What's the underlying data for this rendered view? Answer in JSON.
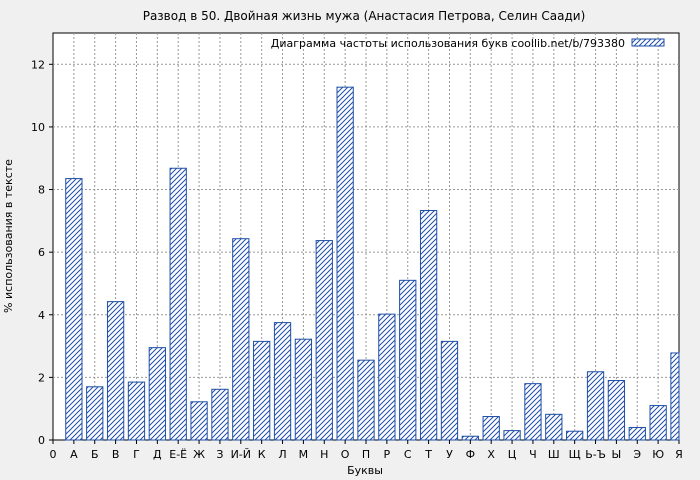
{
  "chart_data": {
    "type": "bar",
    "title": "Развод в 50. Двойная жизнь мужа (Анастасия Петрова, Селин Саади)",
    "xlabel": "Буквы",
    "ylabel": "% использования в тексте",
    "ylim": [
      0,
      13
    ],
    "yticks": [
      0,
      2,
      4,
      6,
      8,
      10,
      12
    ],
    "grid": true,
    "legend_position": "top-right",
    "series": [
      {
        "name": "Диаграмма частоты использования букв coollib.net/b/793380",
        "color": "#1f4fa8",
        "pattern": "diagonal-hatch"
      }
    ],
    "x_ticks": [
      "0",
      "А",
      "Б",
      "В",
      "Г",
      "Д",
      "Е-Ё",
      "Ж",
      "З",
      "И-Й",
      "К",
      "Л",
      "М",
      "Н",
      "О",
      "П",
      "Р",
      "С",
      "Т",
      "У",
      "Ф",
      "Х",
      "Ц",
      "Ч",
      "Ш",
      "Щ",
      "Ь-Ъ",
      "Ы",
      "Э",
      "Ю",
      "Я"
    ],
    "categories": [
      "А",
      "Б",
      "В",
      "Г",
      "Д",
      "Е-Ё",
      "Ж",
      "З",
      "И-Й",
      "К",
      "Л",
      "М",
      "Н",
      "О",
      "П",
      "Р",
      "С",
      "Т",
      "У",
      "Ф",
      "Х",
      "Ц",
      "Ч",
      "Ш",
      "Щ",
      "Ь-Ъ",
      "Ы",
      "Э",
      "Ю",
      "Я"
    ],
    "values": [
      8.35,
      1.7,
      4.42,
      1.85,
      2.95,
      8.68,
      1.22,
      1.62,
      6.43,
      3.15,
      3.75,
      3.22,
      6.37,
      11.27,
      2.55,
      4.02,
      5.1,
      7.33,
      3.15,
      0.12,
      0.75,
      0.3,
      1.8,
      0.82,
      0.28,
      2.18,
      1.9,
      0.4,
      1.1,
      2.78
    ]
  }
}
